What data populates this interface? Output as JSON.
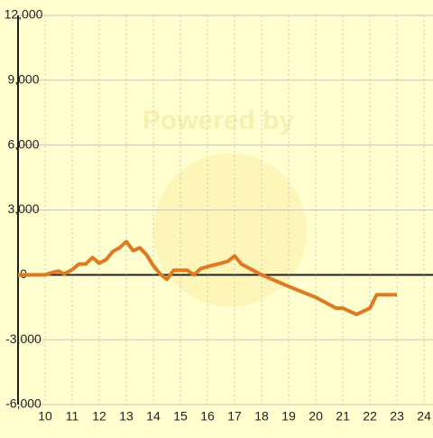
{
  "chart_data": {
    "type": "line",
    "watermark": "Powered by",
    "x": [
      9,
      10,
      10.3,
      10.5,
      10.7,
      11,
      11.25,
      11.5,
      11.75,
      12,
      12.25,
      12.5,
      12.75,
      13,
      13.25,
      13.5,
      13.75,
      14,
      14.25,
      14.5,
      14.75,
      15,
      15.25,
      15.5,
      15.75,
      16,
      16.25,
      16.5,
      16.75,
      17,
      17.25,
      17.5,
      18,
      19,
      20,
      20.75,
      21,
      21.5,
      22,
      22.25,
      23
    ],
    "series": [
      {
        "color": "#e07a20",
        "values": [
          0,
          0,
          120,
          170,
          40,
          240,
          500,
          500,
          800,
          540,
          700,
          1080,
          1250,
          1540,
          1120,
          1250,
          920,
          420,
          40,
          -210,
          210,
          210,
          210,
          0,
          290,
          375,
          460,
          540,
          625,
          875,
          500,
          330,
          0,
          -540,
          -1040,
          -1540,
          -1540,
          -1830,
          -1540,
          -920,
          -920
        ]
      }
    ],
    "xlim": [
      9,
      24.33
    ],
    "xticks": [
      10,
      11,
      12,
      13,
      14,
      15,
      16,
      17,
      18,
      19,
      20,
      21,
      22,
      23,
      24
    ],
    "ylim": [
      -6000,
      12000
    ],
    "yticks": [
      {
        "value": -6000,
        "label": "-6,000"
      },
      {
        "value": -3000,
        "label": "-3,000"
      },
      0,
      {
        "value": 3000,
        "label": "3,000"
      },
      {
        "value": 6000,
        "label": "6,000"
      },
      {
        "value": 9000,
        "label": "9,000"
      },
      {
        "value": 12000,
        "label": "12,000"
      }
    ],
    "grid": true
  }
}
